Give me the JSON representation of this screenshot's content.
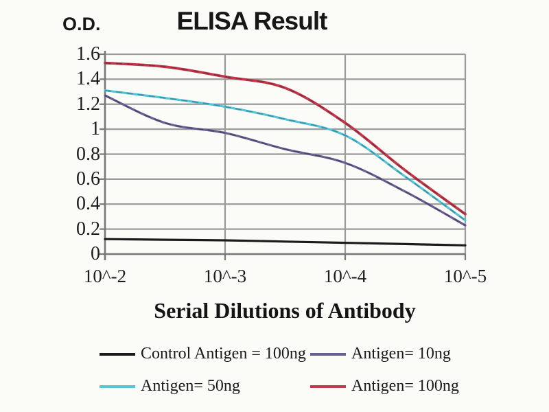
{
  "page": {
    "background": "#fbfbf8"
  },
  "chart_data": {
    "type": "line",
    "title": "ELISA Result",
    "y_axis_label": "O.D.",
    "x_axis_label": "Serial Dilutions of Antibody",
    "categories": [
      "10^-2",
      "10^-3",
      "10^-4",
      "10^-5"
    ],
    "x_tick_labels": [
      "10^-2",
      "10^-3",
      "10^-4",
      "10^-5"
    ],
    "y_tick_labels": [
      "1.6",
      "1.4",
      "1.2",
      "1",
      "0.8",
      "0.6",
      "0.4",
      "0.2",
      "0"
    ],
    "ylim": [
      0,
      1.6
    ],
    "grid": true,
    "legend_position": "bottom",
    "grid_color": "#9a9a9a",
    "axis_color": "#787878",
    "series": [
      {
        "name": "Control Antigen = 100ng",
        "color": "#1b1b1b",
        "dash_color": "#1b1b1b",
        "values": [
          0.12,
          0.11,
          0.09,
          0.07
        ],
        "curve_samples": [
          0.12,
          0.115,
          0.11,
          0.1,
          0.09,
          0.08,
          0.07
        ]
      },
      {
        "name": "Antigen= 10ng",
        "color": "#6b5f92",
        "dash_color": "#3a3158",
        "values": [
          1.27,
          0.97,
          0.73,
          0.23
        ],
        "curve_samples": [
          1.27,
          1.05,
          0.97,
          0.84,
          0.73,
          0.5,
          0.23
        ]
      },
      {
        "name": "Antigen= 50ng",
        "color": "#57c4d8",
        "dash_color": "#1f7083",
        "values": [
          1.31,
          1.18,
          0.95,
          0.27
        ],
        "curve_samples": [
          1.31,
          1.25,
          1.18,
          1.08,
          0.95,
          0.62,
          0.27
        ]
      },
      {
        "name": "Antigen= 100ng",
        "color": "#c0394b",
        "dash_color": "#6b1f2f",
        "values": [
          1.53,
          1.42,
          1.05,
          0.32
        ],
        "curve_samples": [
          1.53,
          1.5,
          1.42,
          1.33,
          1.05,
          0.67,
          0.32
        ]
      }
    ]
  }
}
